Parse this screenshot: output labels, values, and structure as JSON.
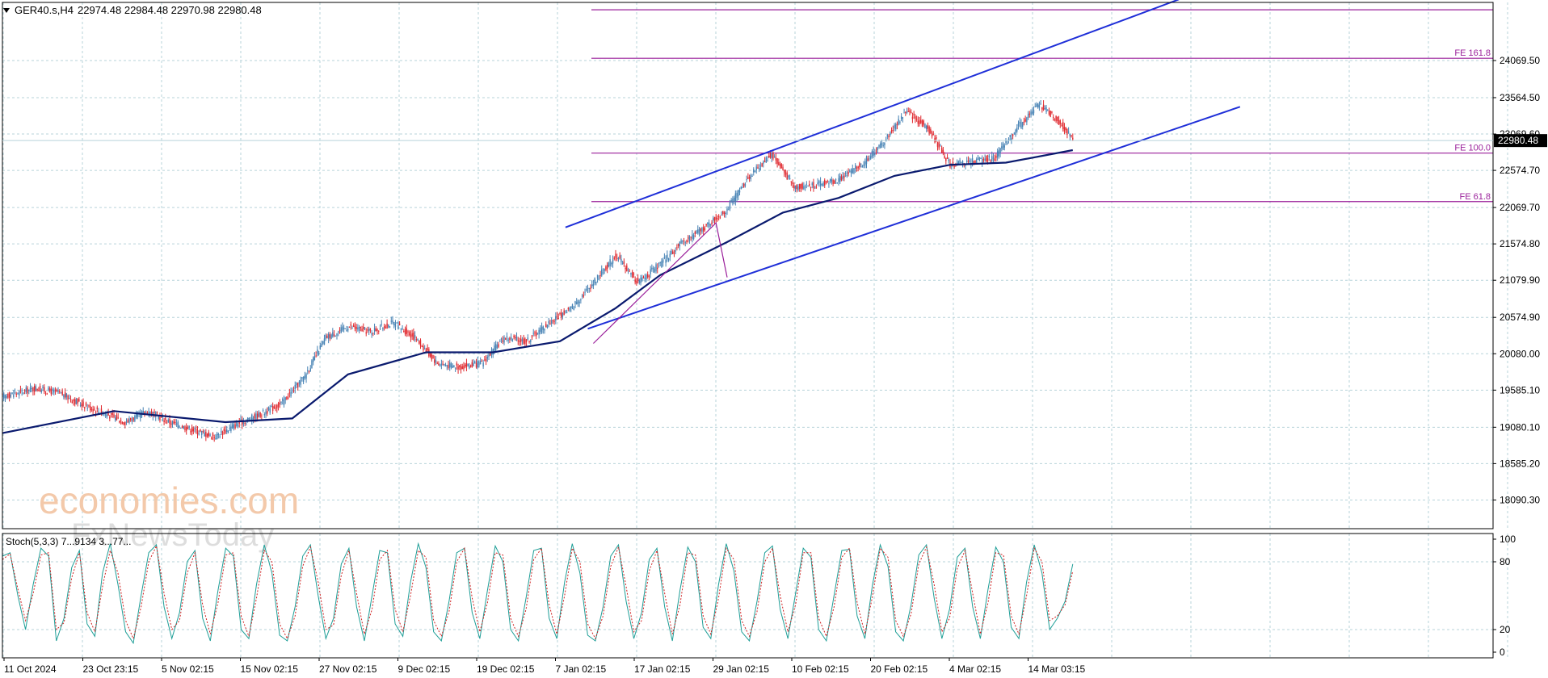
{
  "header": {
    "symbol": "GER40.s,H4",
    "ohlc": "22974.48 22984.48 22970.98 22980.48"
  },
  "watermark": {
    "line1": "economies.com",
    "line2": "FxNewsToday"
  },
  "colors": {
    "bull": "#4682b4",
    "bear": "#e0292f",
    "ma": "#0a1a6e",
    "channel": "#1f2fd8",
    "fib": "#9a1f9a",
    "grid": "#b7d3da",
    "stoch_main": "#1e9e97",
    "stoch_signal": "#d02020"
  },
  "chart_data": [
    {
      "type": "candlestick",
      "title": "GER40.s,H4",
      "y_ticks": [
        "24069.50",
        "23564.50",
        "23069.60",
        "22574.70",
        "22069.70",
        "21574.80",
        "21079.90",
        "20574.90",
        "20080.00",
        "19585.10",
        "19080.10",
        "18585.20",
        "18090.30"
      ],
      "x_ticks": [
        "11 Oct 2024",
        "23 Oct 23:15",
        "5 Nov 02:15",
        "15 Nov 02:15",
        "27 Nov 02:15",
        "9 Dec 02:15",
        "19 Dec 02:15",
        "7 Jan 02:15",
        "17 Jan 02:15",
        "29 Jan 02:15",
        "10 Feb 02:15",
        "20 Feb 02:15",
        "4 Mar 02:15",
        "14 Mar 03:15"
      ],
      "ylim": [
        17700,
        24860
      ],
      "current_price": "22980.48",
      "close_path": [
        [
          0,
          19500
        ],
        [
          6,
          19610
        ],
        [
          10,
          19550
        ],
        [
          14,
          19400
        ],
        [
          18,
          19280
        ],
        [
          22,
          19150
        ],
        [
          26,
          19300
        ],
        [
          30,
          19150
        ],
        [
          34,
          19050
        ],
        [
          38,
          18950
        ],
        [
          42,
          19120
        ],
        [
          46,
          19250
        ],
        [
          50,
          19400
        ],
        [
          54,
          19750
        ],
        [
          58,
          20300
        ],
        [
          62,
          20450
        ],
        [
          66,
          20380
        ],
        [
          70,
          20500
        ],
        [
          74,
          20300
        ],
        [
          78,
          19950
        ],
        [
          82,
          19900
        ],
        [
          86,
          19950
        ],
        [
          90,
          20300
        ],
        [
          94,
          20250
        ],
        [
          98,
          20500
        ],
        [
          102,
          20700
        ],
        [
          106,
          21050
        ],
        [
          110,
          21420
        ],
        [
          114,
          21050
        ],
        [
          118,
          21300
        ],
        [
          122,
          21600
        ],
        [
          126,
          21800
        ],
        [
          130,
          22050
        ],
        [
          134,
          22500
        ],
        [
          138,
          22800
        ],
        [
          142,
          22350
        ],
        [
          146,
          22380
        ],
        [
          150,
          22450
        ],
        [
          154,
          22650
        ],
        [
          158,
          22950
        ],
        [
          162,
          23380
        ],
        [
          166,
          23150
        ],
        [
          170,
          22650
        ],
        [
          174,
          22700
        ],
        [
          178,
          22750
        ],
        [
          182,
          23150
        ],
        [
          186,
          23480
        ],
        [
          190,
          23200
        ],
        [
          192,
          22980
        ]
      ],
      "moving_average": [
        [
          0,
          19000
        ],
        [
          20,
          19300
        ],
        [
          40,
          19150
        ],
        [
          52,
          19200
        ],
        [
          62,
          19800
        ],
        [
          76,
          20100
        ],
        [
          88,
          20100
        ],
        [
          100,
          20250
        ],
        [
          110,
          20700
        ],
        [
          118,
          21150
        ],
        [
          130,
          21600
        ],
        [
          140,
          22000
        ],
        [
          150,
          22200
        ],
        [
          160,
          22500
        ],
        [
          170,
          22650
        ],
        [
          180,
          22680
        ],
        [
          192,
          22850
        ]
      ],
      "channel_lines": [
        {
          "from": [
            101,
            21800
          ],
          "to": [
            211,
            24900
          ]
        },
        {
          "from": [
            105,
            20420
          ],
          "to": [
            222,
            23440
          ]
        }
      ],
      "fib_levels": [
        {
          "label": "",
          "value": 24760
        },
        {
          "label": "FE 161.8",
          "value": 24100
        },
        {
          "label": "FE 100.0",
          "value": 22810
        },
        {
          "label": "FE 61.8",
          "value": 22150
        }
      ],
      "abc_wave": [
        [
          106,
          20220
        ],
        [
          128,
          21860
        ],
        [
          130,
          21120
        ]
      ]
    },
    {
      "type": "line",
      "title": "Stoch(5,3,3) 7...9134 3...77...",
      "y_ticks": [
        "100",
        "80",
        "20",
        "0"
      ],
      "ylim": [
        -5,
        105
      ],
      "series": [
        {
          "values": [
            85,
            88,
            50,
            20,
            60,
            92,
            85,
            10,
            30,
            75,
            90,
            25,
            14,
            70,
            96,
            60,
            18,
            8,
            50,
            88,
            95,
            40,
            12,
            35,
            80,
            90,
            30,
            10,
            55,
            92,
            85,
            20,
            12,
            60,
            95,
            70,
            15,
            10,
            40,
            85,
            95,
            50,
            12,
            30,
            78,
            92,
            40,
            10,
            50,
            90,
            88,
            25,
            14,
            62,
            96,
            75,
            18,
            10,
            45,
            88,
            92,
            35,
            12,
            55,
            94,
            80,
            20,
            10,
            48,
            90,
            92,
            30,
            12,
            62,
            96,
            70,
            15,
            10,
            40,
            85,
            95,
            45,
            12,
            35,
            82,
            92,
            40,
            10,
            55,
            93,
            80,
            22,
            12,
            60,
            96,
            72,
            18,
            10,
            45,
            88,
            94,
            38,
            12,
            52,
            92,
            84,
            20,
            10,
            50,
            90,
            91,
            32,
            12,
            60,
            95,
            76,
            18,
            10,
            42,
            86,
            95,
            48,
            12,
            38,
            84,
            92,
            40,
            12,
            56,
            93,
            80,
            22,
            12,
            62,
            95,
            70,
            20,
            30,
            45,
            78
          ]
        },
        {
          "values": [
            82,
            87,
            56,
            28,
            52,
            86,
            88,
            20,
            26,
            66,
            88,
            35,
            18,
            58,
            90,
            70,
            28,
            12,
            40,
            80,
            94,
            52,
            20,
            28,
            70,
            88,
            42,
            16,
            44,
            86,
            88,
            32,
            14,
            48,
            90,
            80,
            25,
            12,
            32,
            76,
            93,
            62,
            20,
            24,
            68,
            90,
            52,
            16,
            38,
            82,
            90,
            38,
            18,
            50,
            90,
            84,
            28,
            14,
            36,
            80,
            92,
            48,
            18,
            44,
            88,
            86,
            30,
            14,
            38,
            82,
            92,
            42,
            16,
            50,
            92,
            80,
            25,
            12,
            32,
            76,
            93,
            58,
            18,
            28,
            72,
            90,
            52,
            16,
            42,
            88,
            86,
            32,
            16,
            48,
            92,
            82,
            28,
            14,
            36,
            80,
            92,
            50,
            18,
            42,
            88,
            88,
            30,
            14,
            40,
            84,
            92,
            44,
            16,
            50,
            92,
            84,
            28,
            14,
            34,
            78,
            93,
            60,
            18,
            30,
            74,
            90,
            52,
            16,
            44,
            88,
            86,
            32,
            16,
            50,
            92,
            80,
            28,
            32,
            42,
            72
          ]
        }
      ]
    }
  ]
}
